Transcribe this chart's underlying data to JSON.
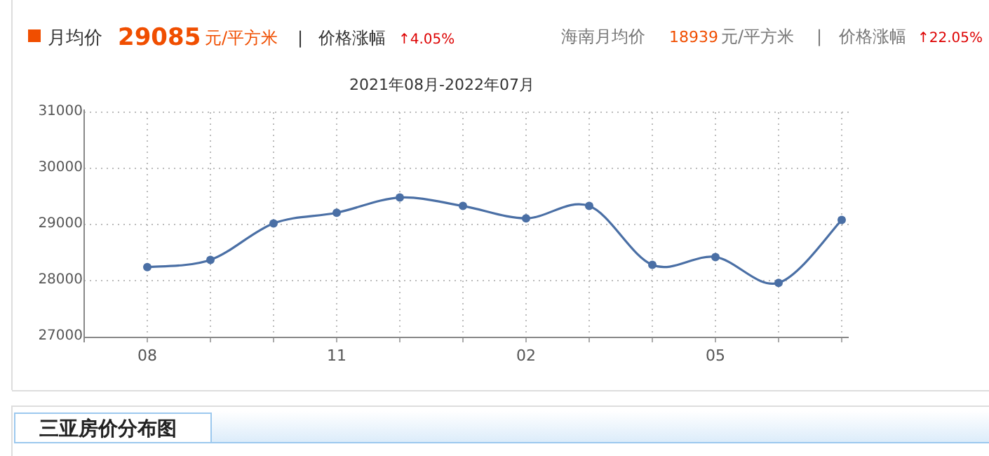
{
  "chart_data": {
    "type": "line",
    "title": "2021年08月-2022年07月",
    "categories": [
      "08",
      null,
      null,
      "11",
      null,
      null,
      "02",
      null,
      null,
      "05",
      null,
      null
    ],
    "series": [
      {
        "color": "#4a6fa5",
        "values": [
          28240,
          28370,
          29020,
          29210,
          29480,
          29330,
          29110,
          29330,
          28280,
          28420,
          27960,
          29080
        ]
      }
    ],
    "ylim": [
      27000,
      31000
    ],
    "yticks": [
      27000,
      28000,
      29000,
      30000,
      31000
    ],
    "grid": true,
    "marker": "circle",
    "line_style": "solid",
    "annotations": [
      "月均价",
      "29085",
      "元/平方米",
      "|",
      "价格涨幅",
      "↑4.05%",
      "海南月均价",
      "18939",
      "元/平方米",
      "|",
      "价格涨幅",
      "↑22.05%",
      "三亚房价分布图"
    ]
  }
}
